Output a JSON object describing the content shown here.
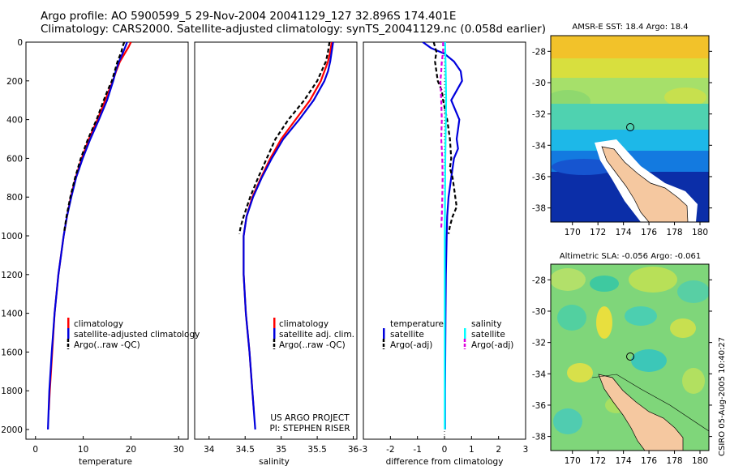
{
  "header": {
    "title_line1": "Argo profile: AO 5900599_5 29-Nov-2004 20041129_127 32.896S 174.401E",
    "title_line2": "Climatology: CARS2000. Satellite-adjusted climatology: synTS_20041129.nc (0.058d earlier)"
  },
  "credit": {
    "line1": "US ARGO PROJECT",
    "line2": "PI: STEPHEN RISER"
  },
  "side_stamp": "CSIRO 05-Aug-2005 10:40:27",
  "colors": {
    "climatology": "#ff0000",
    "satellite": "#0000dd",
    "argo": "#000000",
    "satellite_salinity": "#00ffff",
    "argo_salinity": "#dd00dd",
    "land": "#f5c8a0"
  },
  "chart_data": [
    {
      "type": "line",
      "id": "temperature",
      "xlabel": "temperature",
      "ylabel": "",
      "xlim": [
        -2,
        32
      ],
      "ylim": [
        2050,
        0
      ],
      "xticks": [
        0,
        10,
        20,
        30
      ],
      "yticks": [
        0,
        200,
        400,
        600,
        800,
        1000,
        1200,
        1400,
        1600,
        1800,
        2000
      ],
      "legend": [
        "climatology",
        "satellite-adjusted climatology",
        "Argo(..raw -QC)"
      ],
      "series": [
        {
          "name": "climatology",
          "color": "#ff0000",
          "dash": "",
          "depth": [
            0,
            25,
            50,
            100,
            150,
            200,
            300,
            400,
            500,
            600,
            700,
            800,
            900,
            1000,
            1200,
            1400,
            1600,
            1800,
            1900
          ],
          "values": [
            20.0,
            19.5,
            18.9,
            17.7,
            16.9,
            16.2,
            14.6,
            13.0,
            11.2,
            9.7,
            8.4,
            7.4,
            6.6,
            5.9,
            4.8,
            4.0,
            3.5,
            3.0,
            2.8
          ]
        },
        {
          "name": "satellite-adjusted climatology",
          "color": "#0000dd",
          "dash": "",
          "depth": [
            0,
            25,
            50,
            100,
            150,
            200,
            300,
            400,
            500,
            600,
            700,
            800,
            900,
            1000,
            1200,
            1400,
            1600,
            1800,
            2000
          ],
          "values": [
            19.2,
            18.8,
            18.4,
            17.5,
            16.8,
            16.3,
            15.0,
            13.3,
            11.5,
            9.9,
            8.5,
            7.5,
            6.6,
            5.9,
            4.8,
            4.0,
            3.4,
            2.9,
            2.6
          ]
        },
        {
          "name": "Argo(..raw -QC)",
          "color": "#000000",
          "dash": "5,3",
          "depth": [
            0,
            20,
            50,
            100,
            150,
            200,
            250,
            300,
            400,
            500,
            600,
            700,
            800,
            900,
            980
          ],
          "values": [
            18.6,
            18.3,
            18.0,
            17.2,
            16.6,
            16.0,
            15.1,
            14.3,
            12.8,
            11.0,
            9.5,
            8.3,
            7.3,
            6.5,
            6.0
          ]
        }
      ]
    },
    {
      "type": "line",
      "id": "salinity",
      "xlabel": "salinity",
      "ylabel": "",
      "xlim": [
        33.8,
        36.05
      ],
      "ylim": [
        2050,
        0
      ],
      "xticks": [
        34,
        34.5,
        35,
        35.5,
        36
      ],
      "yticks": [],
      "legend": [
        "climatology",
        "satellite adj. clim.",
        "Argo(..raw -QC)"
      ],
      "series": [
        {
          "name": "climatology",
          "color": "#ff0000",
          "dash": "",
          "depth": [
            0,
            50,
            100,
            150,
            200,
            300,
            400,
            500,
            600,
            700,
            800,
            900,
            1000,
            1200,
            1400,
            1600,
            1800,
            1900
          ],
          "values": [
            35.7,
            35.68,
            35.65,
            35.6,
            35.55,
            35.4,
            35.2,
            35.0,
            34.85,
            34.72,
            34.6,
            34.52,
            34.48,
            34.48,
            34.51,
            34.56,
            34.6,
            34.62
          ]
        },
        {
          "name": "satellite adj. clim.",
          "color": "#0000dd",
          "dash": "",
          "depth": [
            0,
            50,
            100,
            150,
            200,
            300,
            400,
            500,
            600,
            700,
            800,
            900,
            1000,
            1200,
            1400,
            1600,
            1800,
            2000
          ],
          "values": [
            35.72,
            35.7,
            35.68,
            35.65,
            35.6,
            35.45,
            35.25,
            35.03,
            34.87,
            34.73,
            34.61,
            34.52,
            34.48,
            34.48,
            34.51,
            34.56,
            34.6,
            34.64
          ]
        },
        {
          "name": "Argo(..raw -QC)",
          "color": "#000000",
          "dash": "5,3",
          "depth": [
            0,
            50,
            100,
            150,
            200,
            300,
            400,
            500,
            600,
            700,
            800,
            900,
            950,
            990
          ],
          "values": [
            35.67,
            35.65,
            35.62,
            35.56,
            35.5,
            35.32,
            35.1,
            34.92,
            34.8,
            34.68,
            34.57,
            34.48,
            34.44,
            34.42
          ]
        }
      ]
    },
    {
      "type": "line",
      "id": "difference",
      "xlabel": "difference from climatology",
      "ylabel": "",
      "xlim": [
        -3,
        3
      ],
      "ylim": [
        2050,
        0
      ],
      "xticks": [
        -3,
        -2,
        -1,
        0,
        1,
        2,
        3
      ],
      "yticks": [],
      "legend": [
        "temperature",
        "satellite",
        "Argo(-adj)",
        "salinity",
        "satellite",
        "Argo(-adj)"
      ],
      "series": [
        {
          "name": "satellite",
          "group": "temperature",
          "color": "#0000dd",
          "dash": "",
          "depth": [
            0,
            30,
            60,
            100,
            150,
            200,
            250,
            300,
            350,
            400,
            450,
            500,
            550,
            600,
            700,
            800,
            900,
            1000,
            1200,
            1400,
            1600,
            1800,
            2000
          ],
          "values": [
            -0.8,
            -0.5,
            0.0,
            0.35,
            0.6,
            0.65,
            0.45,
            0.25,
            0.4,
            0.55,
            0.5,
            0.45,
            0.5,
            0.35,
            0.25,
            0.15,
            0.1,
            0.08,
            0.05,
            0.04,
            0.03,
            0.02,
            0.02
          ]
        },
        {
          "name": "Argo(-adj)",
          "group": "temperature",
          "color": "#000000",
          "dash": "5,3",
          "depth": [
            0,
            50,
            100,
            150,
            200,
            250,
            300,
            400,
            500,
            600,
            650,
            700,
            750,
            800,
            850,
            900,
            950,
            990
          ],
          "values": [
            -0.4,
            -0.3,
            -0.35,
            -0.3,
            -0.25,
            -0.1,
            -0.05,
            0.1,
            0.2,
            0.25,
            0.2,
            0.3,
            0.35,
            0.4,
            0.45,
            0.3,
            0.2,
            0.15
          ]
        },
        {
          "name": "satellite",
          "group": "salinity",
          "color": "#00ffff",
          "dash": "",
          "depth": [
            0,
            100,
            200,
            300,
            400,
            600,
            800,
            1000,
            1200,
            1400,
            1600,
            1800,
            2000
          ],
          "values": [
            0.02,
            0.04,
            0.05,
            0.06,
            0.05,
            0.03,
            0.02,
            0.01,
            0.01,
            0.01,
            0.01,
            0.01,
            0.01
          ]
        },
        {
          "name": "Argo(-adj)",
          "group": "salinity",
          "color": "#dd00dd",
          "dash": "5,3",
          "depth": [
            0,
            50,
            100,
            150,
            200,
            300,
            400,
            500,
            600,
            700,
            800,
            900,
            960
          ],
          "values": [
            -0.05,
            -0.05,
            -0.1,
            -0.12,
            -0.15,
            -0.12,
            -0.1,
            -0.12,
            -0.08,
            -0.07,
            -0.08,
            -0.1,
            -0.12
          ]
        }
      ]
    },
    {
      "type": "heatmap",
      "id": "amsr-sst-map",
      "title": "AMSR-E SST: 18.4 Argo: 18.4",
      "xlim": [
        168.3,
        180.7
      ],
      "ylim": [
        -38.9,
        -27.0
      ],
      "xticks": [
        170,
        172,
        174,
        176,
        178,
        180
      ],
      "yticks": [
        -28,
        -30,
        -32,
        -34,
        -36,
        -38
      ],
      "float_position": {
        "lon": 174.401,
        "lat": -32.896
      }
    },
    {
      "type": "heatmap",
      "id": "altimetric-sla-map",
      "title": "Altimetric SLA: -0.056 Argo: -0.061",
      "xlim": [
        168.3,
        180.7
      ],
      "ylim": [
        -38.9,
        -27.0
      ],
      "xticks": [
        170,
        172,
        174,
        176,
        178,
        180
      ],
      "yticks": [
        -28,
        -30,
        -32,
        -34,
        -36,
        -38
      ],
      "float_position": {
        "lon": 174.401,
        "lat": -32.896
      }
    }
  ]
}
